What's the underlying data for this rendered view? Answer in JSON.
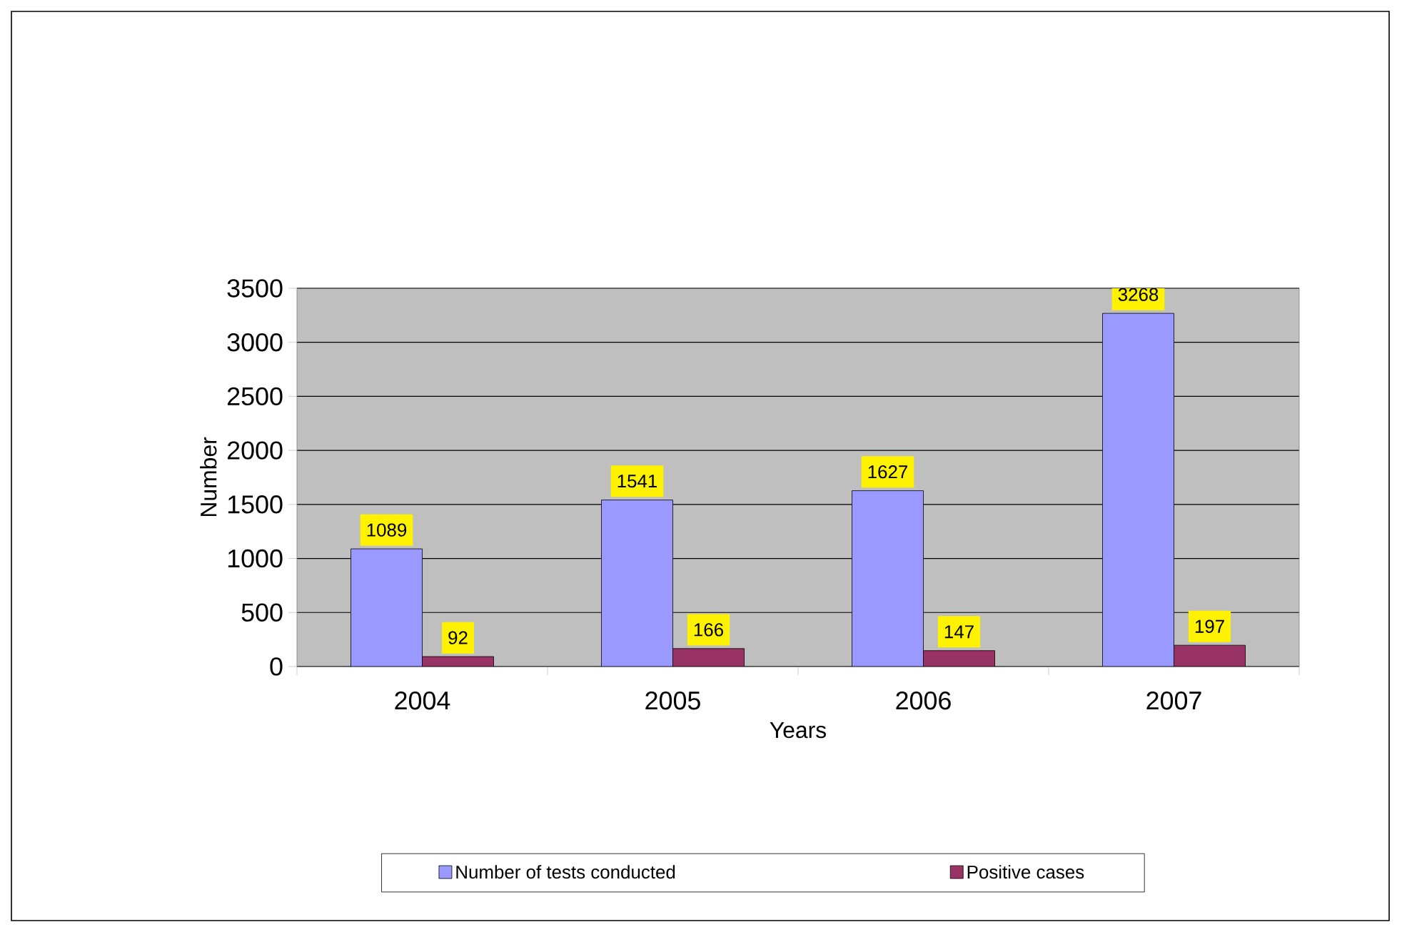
{
  "chart_data": {
    "type": "bar",
    "xlabel": "Years",
    "ylabel": "Number",
    "categories": [
      "2004",
      "2005",
      "2006",
      "2007"
    ],
    "series": [
      {
        "name": "Number of tests conducted",
        "color": "#9999ff",
        "values": [
          1089,
          1541,
          1627,
          3268
        ]
      },
      {
        "name": "Positive cases",
        "color": "#993366",
        "values": [
          92,
          166,
          147,
          197
        ]
      }
    ],
    "ylim": [
      0,
      3500
    ],
    "yticks": [
      0,
      500,
      1000,
      1500,
      2000,
      2500,
      3000,
      3500
    ],
    "grid": "y",
    "legend": "bottom",
    "data_labels": true
  }
}
